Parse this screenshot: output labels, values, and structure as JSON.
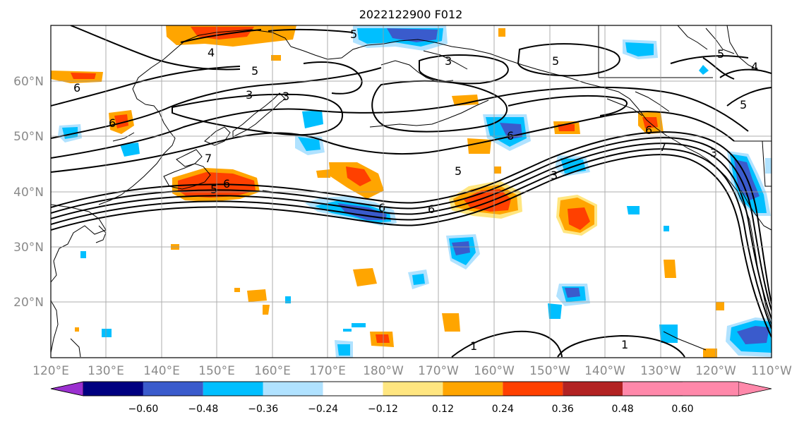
{
  "map": {
    "title": "2022122900 F012",
    "lat_ticks": [
      "20°N",
      "30°N",
      "40°N",
      "50°N",
      "60°N"
    ],
    "lon_ticks": [
      "120°E",
      "130°E",
      "140°E",
      "150°E",
      "160°E",
      "170°E",
      "180°W",
      "170°W",
      "160°W",
      "150°W",
      "140°W",
      "130°W",
      "120°W",
      "110°W"
    ],
    "colorbar": {
      "labels": [
        "−0.60",
        "−0.48",
        "−0.36",
        "−0.24",
        "−0.12",
        "0.12",
        "0.24",
        "0.36",
        "0.48",
        "0.60"
      ],
      "colors": [
        "#9b30d0",
        "#000080",
        "#3a5bcc",
        "#00bfff",
        "#b0e2ff",
        "#ffffff",
        "#ffe680",
        "#ffa500",
        "#ff4000",
        "#b22222",
        "#ff88aa"
      ]
    },
    "contour_labels": [
      "5",
      "4",
      "3",
      "3",
      "5",
      "6",
      "5",
      "3",
      "5",
      "4",
      "5",
      "6",
      "7",
      "5",
      "6",
      "6",
      "5",
      "6",
      "6",
      "7",
      "3",
      "6",
      "1",
      "1",
      "3"
    ]
  }
}
